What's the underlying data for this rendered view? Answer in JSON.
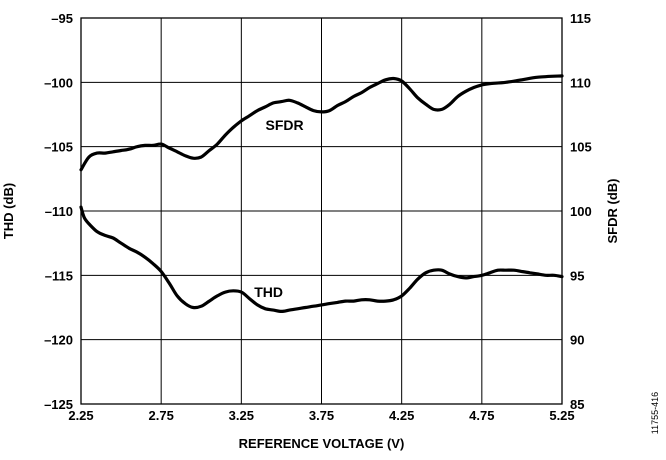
{
  "chart_data": {
    "type": "line",
    "xlabel": "REFERENCE VOLTAGE (V)",
    "ylabel_left": "THD (dB)",
    "ylabel_right": "SFDR (dB)",
    "xlim": [
      2.25,
      5.25
    ],
    "ylim_left": [
      -125,
      -95
    ],
    "ylim_right": [
      85,
      115
    ],
    "x_ticks": [
      2.25,
      2.75,
      3.25,
      3.75,
      4.25,
      4.75,
      5.25
    ],
    "x_tick_labels": [
      "2.25",
      "2.75",
      "3.25",
      "3.75",
      "4.25",
      "4.75",
      "5.25"
    ],
    "y_ticks_left": [
      -95,
      -100,
      -105,
      -110,
      -115,
      -120,
      -125
    ],
    "y_tick_labels_left": [
      "–95",
      "–100",
      "–105",
      "–110",
      "–115",
      "–120",
      "–125"
    ],
    "y_ticks_right": [
      115,
      110,
      105,
      100,
      95,
      90,
      85
    ],
    "y_tick_labels_right": [
      "115",
      "110",
      "105",
      "100",
      "95",
      "90",
      "85"
    ],
    "grid": true,
    "figure_id": "11755-416",
    "series": [
      {
        "name": "SFDR",
        "axis": "right",
        "label_at": [
          3.52,
          106.3
        ],
        "x": [
          2.25,
          2.3,
          2.35,
          2.4,
          2.45,
          2.5,
          2.55,
          2.6,
          2.65,
          2.7,
          2.75,
          2.8,
          2.85,
          2.9,
          2.95,
          3.0,
          3.05,
          3.1,
          3.15,
          3.2,
          3.25,
          3.3,
          3.35,
          3.4,
          3.45,
          3.5,
          3.55,
          3.6,
          3.65,
          3.7,
          3.75,
          3.8,
          3.85,
          3.9,
          3.95,
          4.0,
          4.05,
          4.1,
          4.15,
          4.2,
          4.25,
          4.3,
          4.35,
          4.4,
          4.45,
          4.5,
          4.55,
          4.6,
          4.65,
          4.7,
          4.75,
          4.8,
          4.9,
          5.0,
          5.1,
          5.25
        ],
        "values": [
          103.2,
          104.2,
          104.5,
          104.5,
          104.6,
          104.7,
          104.8,
          105.0,
          105.1,
          105.1,
          105.2,
          104.9,
          104.6,
          104.3,
          104.1,
          104.2,
          104.7,
          105.2,
          105.9,
          106.5,
          107.0,
          107.4,
          107.8,
          108.1,
          108.4,
          108.5,
          108.6,
          108.4,
          108.1,
          107.8,
          107.7,
          107.8,
          108.2,
          108.5,
          108.9,
          109.2,
          109.6,
          109.9,
          110.2,
          110.3,
          110.1,
          109.5,
          108.8,
          108.3,
          107.9,
          107.9,
          108.3,
          108.9,
          109.3,
          109.6,
          109.8,
          109.9,
          110.0,
          110.2,
          110.4,
          110.5
        ]
      },
      {
        "name": "THD",
        "axis": "left",
        "label_at": [
          3.42,
          -116.7
        ],
        "x": [
          2.25,
          2.27,
          2.3,
          2.35,
          2.4,
          2.45,
          2.5,
          2.55,
          2.6,
          2.65,
          2.7,
          2.75,
          2.8,
          2.85,
          2.9,
          2.95,
          3.0,
          3.05,
          3.1,
          3.15,
          3.2,
          3.25,
          3.3,
          3.35,
          3.4,
          3.45,
          3.5,
          3.55,
          3.6,
          3.65,
          3.7,
          3.75,
          3.8,
          3.85,
          3.9,
          3.95,
          4.0,
          4.05,
          4.1,
          4.15,
          4.2,
          4.25,
          4.3,
          4.35,
          4.4,
          4.45,
          4.5,
          4.55,
          4.6,
          4.65,
          4.7,
          4.75,
          4.8,
          4.85,
          4.9,
          4.95,
          5.0,
          5.05,
          5.1,
          5.15,
          5.2,
          5.25
        ],
        "values": [
          -109.7,
          -110.5,
          -111.0,
          -111.6,
          -111.9,
          -112.1,
          -112.5,
          -112.9,
          -113.2,
          -113.6,
          -114.1,
          -114.7,
          -115.6,
          -116.6,
          -117.2,
          -117.5,
          -117.4,
          -117.0,
          -116.6,
          -116.3,
          -116.2,
          -116.3,
          -116.8,
          -117.3,
          -117.6,
          -117.7,
          -117.8,
          -117.7,
          -117.6,
          -117.5,
          -117.4,
          -117.3,
          -117.2,
          -117.1,
          -117.0,
          -117.0,
          -116.9,
          -116.9,
          -117.0,
          -117.0,
          -116.9,
          -116.6,
          -116.0,
          -115.3,
          -114.8,
          -114.6,
          -114.6,
          -114.9,
          -115.1,
          -115.2,
          -115.1,
          -115.0,
          -114.8,
          -114.6,
          -114.6,
          -114.6,
          -114.7,
          -114.8,
          -114.9,
          -115.0,
          -115.0,
          -115.1
        ]
      }
    ]
  }
}
